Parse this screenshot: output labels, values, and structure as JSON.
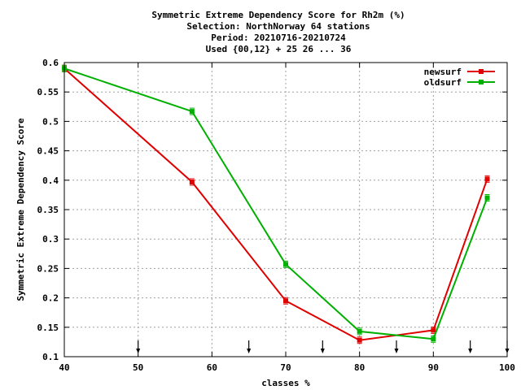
{
  "chart_data": {
    "type": "line",
    "title_lines": [
      "Symmetric Extreme Dependency Score  for Rh2m (%)",
      "Selection: NorthNorway     64 stations",
      "Period: 20210716-20210724",
      "Used {00,12} + 25 26 ... 36"
    ],
    "xlabel": "classes %",
    "ylabel": "Symmetric Extreme Dependency Score",
    "xlim": [
      40,
      100
    ],
    "ylim": [
      0.1,
      0.6
    ],
    "x_ticks": [
      "40",
      "50",
      "60",
      "70",
      "80",
      "90",
      "100"
    ],
    "y_ticks": [
      "0.1",
      "0.15",
      "0.2",
      "0.25",
      "0.3",
      "0.35",
      "0.4",
      "0.45",
      "0.5",
      "0.55",
      "0.6"
    ],
    "grid": true,
    "legend_position": "top-right",
    "threshold_arrows_x": [
      50,
      65,
      75,
      85,
      95,
      100
    ],
    "series": [
      {
        "name": "newsurf",
        "color": "#e00000",
        "x": [
          40,
          57.3,
          70,
          80,
          90,
          97.3
        ],
        "values": [
          0.59,
          0.397,
          0.195,
          0.128,
          0.145,
          0.402
        ]
      },
      {
        "name": "oldsurf",
        "color": "#00b000",
        "x": [
          40,
          57.3,
          70,
          80,
          90,
          97.3
        ],
        "values": [
          0.59,
          0.517,
          0.257,
          0.143,
          0.13,
          0.37
        ]
      }
    ]
  }
}
